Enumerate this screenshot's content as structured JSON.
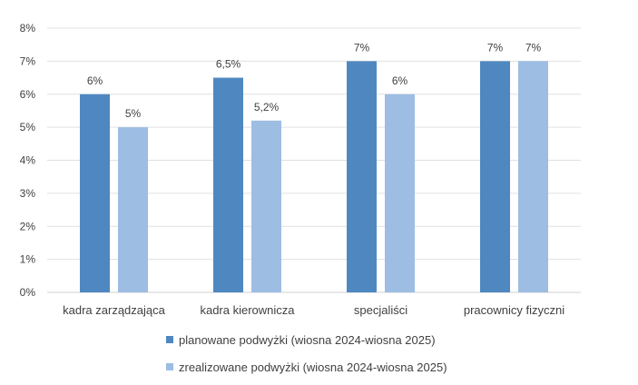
{
  "chart_data": {
    "type": "bar",
    "title": "",
    "xlabel": "",
    "ylabel": "",
    "ylim": [
      0,
      8
    ],
    "yticks": [
      "0%",
      "1%",
      "2%",
      "3%",
      "4%",
      "5%",
      "6%",
      "7%",
      "8%"
    ],
    "grid": true,
    "legend_position": "bottom",
    "categories": [
      "kadra zarządzająca",
      "kadra kierownicza",
      "specjaliści",
      "pracownicy fizyczni"
    ],
    "series": [
      {
        "name": "planowane podwyżki (wiosna 2024-wiosna 2025)",
        "color": "#4f88c0",
        "values": [
          6,
          6.5,
          7,
          7
        ],
        "labels": [
          "6%",
          "6,5%",
          "7%",
          "7%"
        ]
      },
      {
        "name": "zrealizowane podwyżki (wiosna 2024-wiosna 2025)",
        "color": "#9dbde3",
        "values": [
          5,
          5.2,
          6,
          7
        ],
        "labels": [
          "5%",
          "5,2%",
          "6%",
          "7%"
        ]
      }
    ]
  }
}
